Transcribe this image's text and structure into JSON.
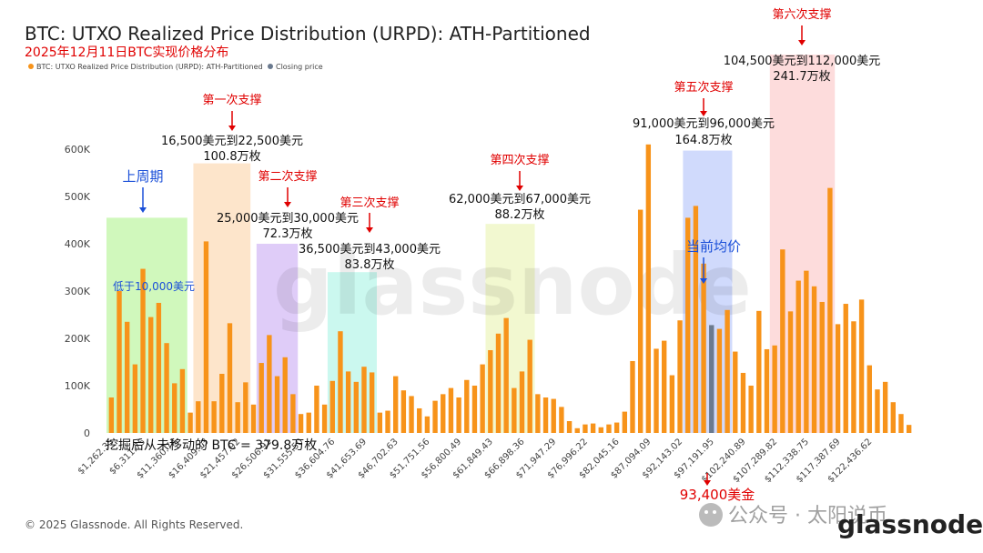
{
  "chart_data": {
    "type": "bar",
    "title": "BTC: UTXO Realized Price Distribution (URPD): ATH-Partitioned",
    "subtitle": "2025年12月11日BTC实现价格分布",
    "legend": [
      {
        "name": "BTC: UTXO Realized Price Distribution (URPD): ATH-Partitioned",
        "color": "#f7931a"
      },
      {
        "name": "Closing price",
        "color": "#6b7a8f"
      }
    ],
    "legend_position": "top-left",
    "y_ticks": [
      "0",
      "100K",
      "200K",
      "300K",
      "400K",
      "500K",
      "600K"
    ],
    "ylim": [
      0,
      600000
    ],
    "x_tick_labels": [
      "$1,262.35",
      "$6,311.75",
      "$11,360.74",
      "$16,409.13",
      "$21,457.92",
      "$26,506.91",
      "$31,555.50",
      "$36,604.76",
      "$41,653.69",
      "$46,702.63",
      "$51,751.56",
      "$56,800.49",
      "$61,849.43",
      "$66,898.36",
      "$71,947.29",
      "$76,996.22",
      "$82,045.16",
      "$87,094.09",
      "$92,143.02",
      "$97,191.95",
      "$102,240.89",
      "$107,289.82",
      "$112,338.75",
      "$117,387.69",
      "$122,436.62"
    ],
    "values": [
      75000,
      300000,
      235000,
      145000,
      347000,
      245000,
      275000,
      190000,
      105000,
      135000,
      43000,
      67000,
      405000,
      67000,
      125000,
      232000,
      65000,
      107000,
      60000,
      148000,
      207000,
      120000,
      160000,
      82000,
      40000,
      43000,
      100000,
      60000,
      110000,
      215000,
      130000,
      108000,
      140000,
      128000,
      43000,
      47000,
      120000,
      90000,
      78000,
      52000,
      35000,
      68000,
      82000,
      95000,
      75000,
      112000,
      100000,
      145000,
      175000,
      210000,
      243000,
      95000,
      130000,
      197000,
      82000,
      75000,
      72000,
      55000,
      25000,
      10000,
      18000,
      20000,
      12000,
      18000,
      22000,
      45000,
      152000,
      472000,
      610000,
      178000,
      195000,
      122000,
      238000,
      455000,
      480000,
      358000,
      228000,
      220000,
      260000,
      172000,
      127000,
      100000,
      258000,
      177000,
      185000,
      388000,
      257000,
      322000,
      343000,
      310000,
      277000,
      518000,
      230000,
      273000,
      236000,
      282000,
      143000,
      92000,
      108000,
      65000,
      40000,
      17000
    ],
    "highlight_index": 76,
    "zones": [
      {
        "label": "上周期",
        "note": "低于10,000美元",
        "color": "#c8f7b0"
      },
      {
        "label": "第一次支撑",
        "range": "16,500美元到22,500美元",
        "amount": "100.8万枚",
        "color": "#fde1c2"
      },
      {
        "label": "第二次支撑",
        "range": "25,000美元到30,000美元",
        "amount": "72.3万枚",
        "color": "#d9c3f7"
      },
      {
        "label": "第三次支撑",
        "range": "36,500美元到43,000美元",
        "amount": "83.8万枚",
        "color": "#c2f7ec"
      },
      {
        "label": "第四次支撑",
        "range": "62,000美元到67,000美元",
        "amount": "88.2万枚",
        "color": "#f0f7c8"
      },
      {
        "label": "第五次支撑",
        "range": "91,000美元到96,000美元",
        "amount": "164.8万枚",
        "color": "#c8d4fb"
      },
      {
        "label": "第六次支撑",
        "range": "104,500美元到112,000美元",
        "amount": "241.7万枚",
        "color": "#fdd6d6"
      }
    ],
    "current_price_label": "当前均价",
    "current_price_value": "93,400美金",
    "unmoved_note": "挖掘后从未移动的 BTC = 379.8万枚",
    "grid": false
  },
  "footer": {
    "copyright": "© 2025 Glassnode. All Rights Reserved.",
    "brand": "glassnode",
    "watermark": "glassnode",
    "wechat": "公众号 · 太阳说币"
  },
  "colors": {
    "bar": "#f7931a",
    "closing": "#6b7a8f",
    "accent_red": "#e00000",
    "accent_blue": "#1a4fd8"
  }
}
